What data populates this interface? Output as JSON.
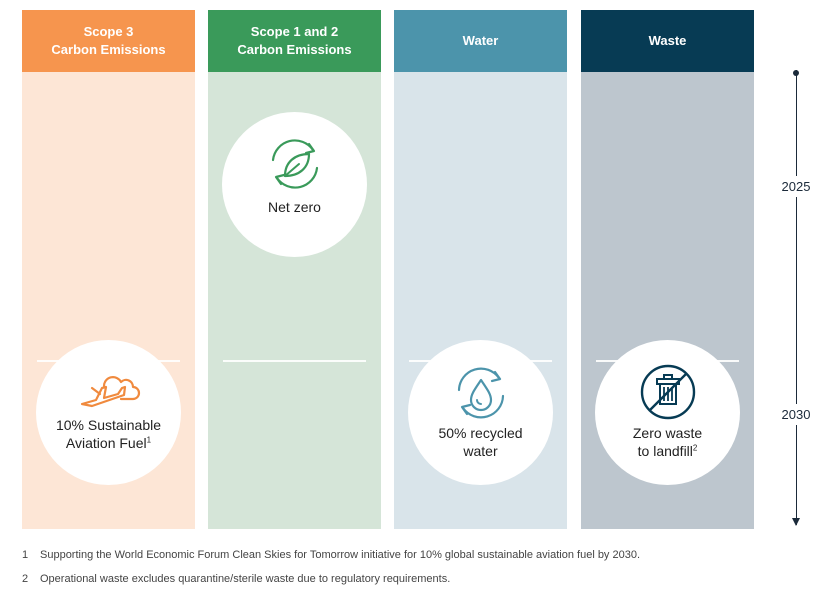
{
  "columns": [
    {
      "title": "Scope 3\nCarbon Emissions",
      "head_color": "#f6954e",
      "body_color": "#fde6d6",
      "target": {
        "label": "10% Sustainable\nAviation Fuel",
        "sup": "1",
        "year": "2030",
        "icon": "plane-cloud-icon"
      }
    },
    {
      "title": "Scope 1 and 2\nCarbon Emissions",
      "head_color": "#3a9a5a",
      "body_color": "#d5e5d8",
      "target": {
        "label": "Net zero",
        "sup": "",
        "year": "2025",
        "icon": "recycle-leaf-icon"
      }
    },
    {
      "title": "Water",
      "head_color": "#4c94ab",
      "body_color": "#d9e4ea",
      "target": {
        "label": "50% recycled\nwater",
        "sup": "",
        "year": "2030",
        "icon": "recycle-water-drop-icon"
      }
    },
    {
      "title": "Waste",
      "head_color": "#073b54",
      "body_color": "#bdc6ce",
      "target": {
        "label": "Zero waste\nto landfill",
        "sup": "2",
        "year": "2030",
        "icon": "no-bin-icon"
      }
    }
  ],
  "timeline": {
    "years": [
      "2025",
      "2030"
    ]
  },
  "footnotes": [
    {
      "num": "1",
      "text": "Supporting the World Economic Forum Clean Skies for Tomorrow initiative for 10% global sustainable aviation fuel by 2030."
    },
    {
      "num": "2",
      "text": "Operational waste excludes quarantine/sterile waste due to regulatory requirements."
    }
  ]
}
